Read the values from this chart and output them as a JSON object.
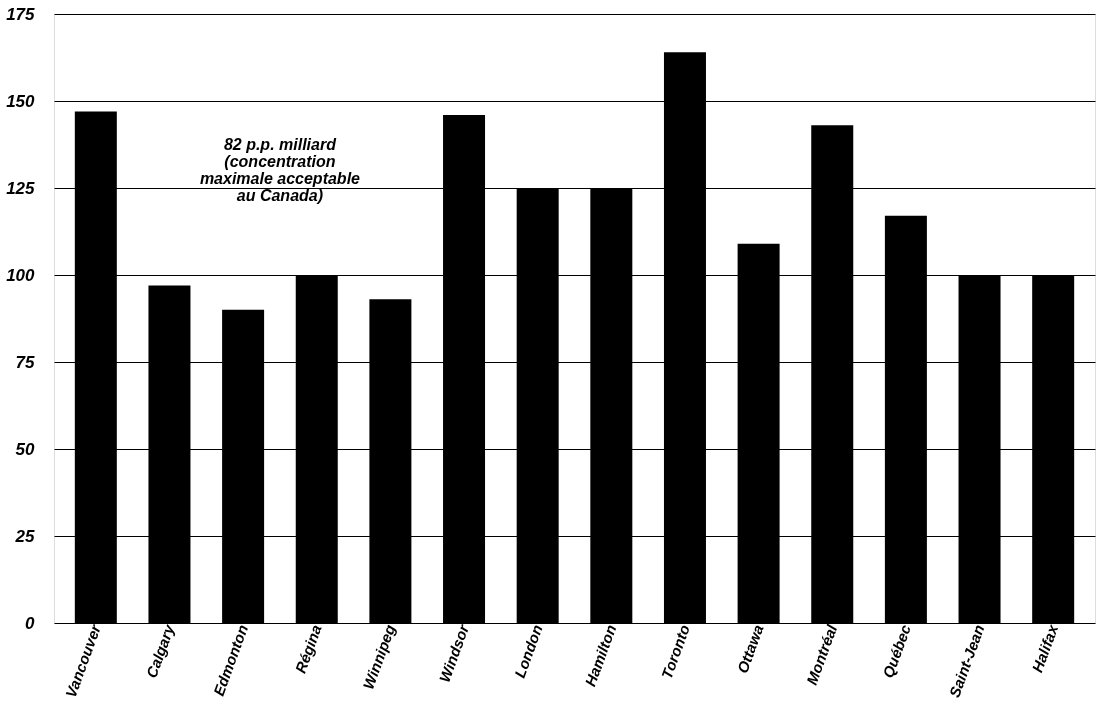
{
  "chart_data": {
    "type": "bar",
    "categories": [
      "Vancouver",
      "Calgary",
      "Edmonton",
      "Régina",
      "Winnipeg",
      "Windsor",
      "London",
      "Hamilton",
      "Toronto",
      "Ottawa",
      "Montréal",
      "Québec",
      "Saint-Jean",
      "Halifax"
    ],
    "values": [
      147,
      97,
      90,
      100,
      93,
      146,
      125,
      125,
      164,
      109,
      143,
      117,
      100,
      100
    ],
    "color": "#000000",
    "ylim": [
      0,
      175
    ],
    "yticks": [
      0,
      25,
      50,
      75,
      100,
      125,
      150,
      175
    ],
    "grid": "y",
    "annotations": [
      "82 p.p. milliard (concentration maximale acceptable au Canada)"
    ]
  }
}
